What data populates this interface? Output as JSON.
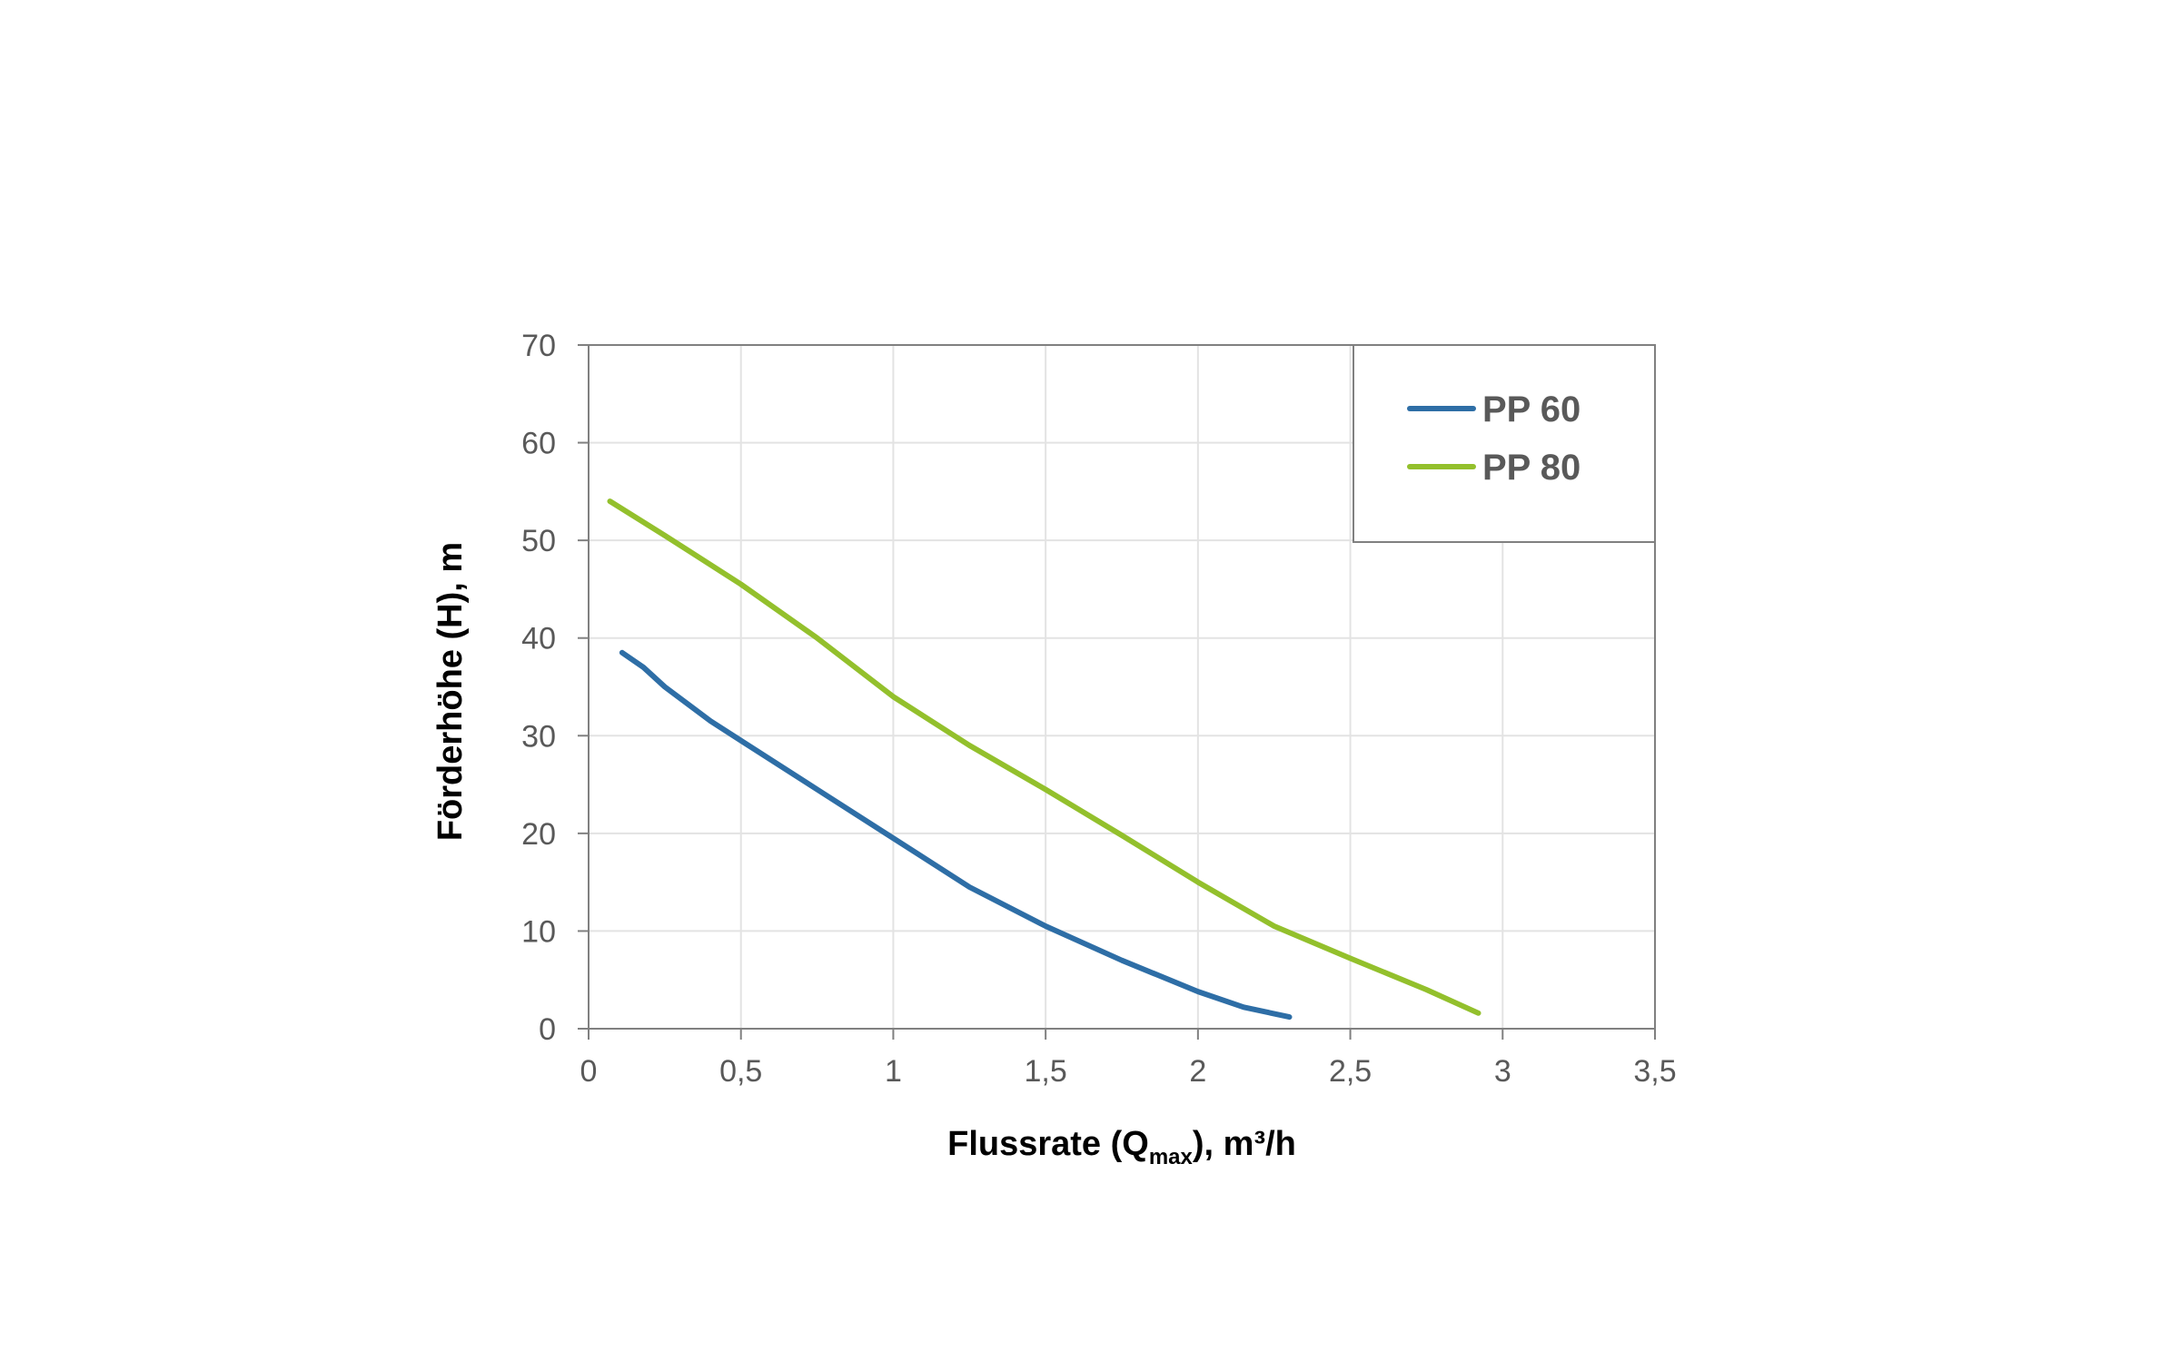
{
  "chart_data": {
    "type": "line",
    "title": "",
    "xlabel": {
      "main": "Flussrate (Q",
      "sub": "max",
      "rest": "), m³/h"
    },
    "ylabel": "Förderhöhe (H), m",
    "xlim": [
      0,
      3.5
    ],
    "ylim": [
      0,
      70
    ],
    "x_ticks": [
      "0",
      "0,5",
      "1",
      "1,5",
      "2",
      "2,5",
      "3",
      "3,5"
    ],
    "x_tick_values": [
      0,
      0.5,
      1,
      1.5,
      2,
      2.5,
      3,
      3.5
    ],
    "y_ticks": [
      "0",
      "10",
      "20",
      "30",
      "40",
      "50",
      "60",
      "70"
    ],
    "y_tick_values": [
      0,
      10,
      20,
      30,
      40,
      50,
      60,
      70
    ],
    "grid": true,
    "legend_position": "top-right",
    "series": [
      {
        "name": "PP 60",
        "color": "#2e6ea6",
        "x": [
          0.11,
          0.18,
          0.25,
          0.4,
          0.5,
          0.75,
          1.0,
          1.25,
          1.5,
          1.75,
          2.0,
          2.15,
          2.3
        ],
        "y": [
          38.5,
          37,
          35,
          31.5,
          29.5,
          24.5,
          19.5,
          14.5,
          10.5,
          7,
          3.8,
          2.2,
          1.2
        ]
      },
      {
        "name": "PP 80",
        "color": "#93c02c",
        "x": [
          0.07,
          0.25,
          0.5,
          0.75,
          1.0,
          1.25,
          1.5,
          1.75,
          2.0,
          2.25,
          2.5,
          2.75,
          2.92
        ],
        "y": [
          54,
          50.5,
          45.5,
          40,
          34,
          29,
          24.5,
          19.8,
          15,
          10.5,
          7.2,
          4,
          1.6
        ]
      }
    ]
  }
}
